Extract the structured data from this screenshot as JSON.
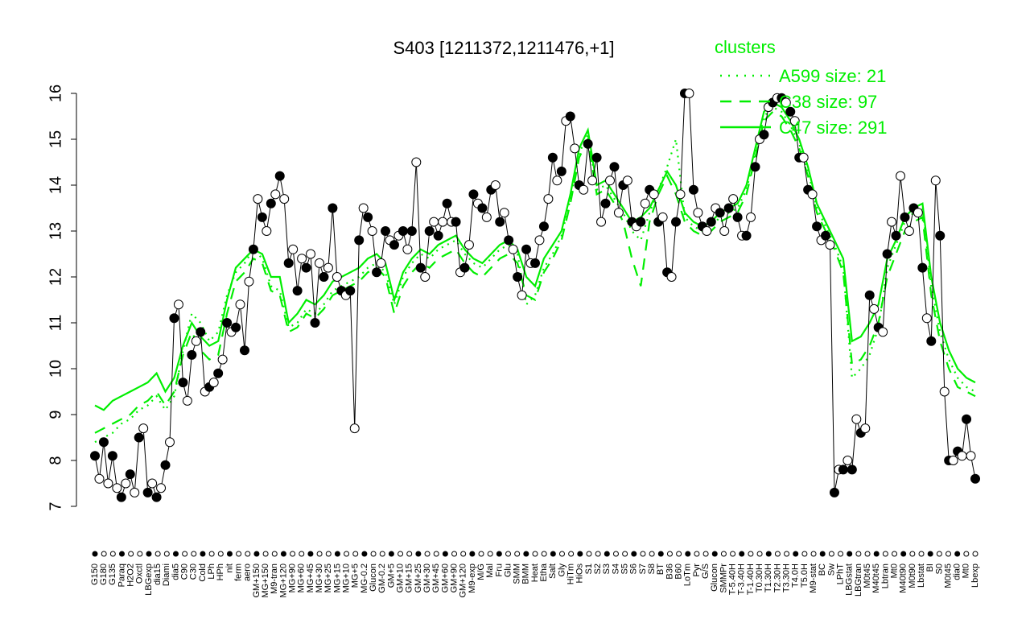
{
  "chart_data": {
    "type": "line",
    "title": "S403 [1211372,1211476,+1]",
    "ylim": [
      7,
      16
    ],
    "yticks": [
      7,
      8,
      9,
      10,
      11,
      12,
      13,
      14,
      15,
      16
    ],
    "xlabels": [
      "G150",
      "G180",
      "G135",
      "Paraq",
      "H2O2",
      "Oxctl",
      "LBGexp",
      "dia15",
      "Diami",
      "dia5",
      "C90",
      "C30",
      "Cold",
      "LPh",
      "HPh",
      "nit",
      "ferm",
      "aero",
      "GM+150",
      "MG+150",
      "M9-tran",
      "MG+120",
      "MG+90",
      "MG+60",
      "MG+45",
      "MG+30",
      "MG+25",
      "MG+15",
      "MG+10",
      "MG+5",
      "MG-0.2",
      "Glucon",
      "GM-0.2",
      "GM+5",
      "GM+10",
      "GM+15",
      "GM+25",
      "GM+30",
      "GM+45",
      "GM+60",
      "GM+90",
      "GM+120",
      "M9-exp",
      "M/G",
      "Mal",
      "Fru",
      "Glu",
      "SMM",
      "BMM",
      "Heat",
      "Etha",
      "Salt",
      "Gly",
      "HiTm",
      "HiOs",
      "S1",
      "S2",
      "S3",
      "S4",
      "S5",
      "S6",
      "S7",
      "S8",
      "BT",
      "B36",
      "B60",
      "LoTm",
      "Pyr",
      "G/S",
      "Glucon",
      "SMMPr",
      "T-5.40H",
      "T-3.40H",
      "T-1.40H",
      "T0.30H",
      "T1.30H",
      "T2.30H",
      "T3.30H",
      "T4.0H",
      "T5.0H",
      "M9-stat",
      "BC",
      "Sw",
      "LPhT",
      "LBGstat",
      "LBGtran",
      "M0t45",
      "M40t45",
      "Lbtran",
      "Mt0",
      "M40t90",
      "M0t90",
      "Lbstat",
      "BI",
      "S0",
      "M0t45",
      "dia0",
      "Mt0",
      "Lbexp"
    ],
    "legend": {
      "title": "clusters",
      "entries": [
        "A599 size: 21",
        "C38 size: 97",
        "C47 size: 291"
      ],
      "placement": "top-right",
      "line_styles": [
        "dotted",
        "dashed",
        "solid"
      ]
    },
    "series": [
      {
        "name": "C47 size: 291",
        "style": "solid",
        "values": [
          9.2,
          9.1,
          9.3,
          9.4,
          9.5,
          9.6,
          9.7,
          9.9,
          9.5,
          9.8,
          10.5,
          11.0,
          10.7,
          10.5,
          10.6,
          11.5,
          12.2,
          12.4,
          12.6,
          12.5,
          12.0,
          12.0,
          11.0,
          11.2,
          11.5,
          11.4,
          11.6,
          11.9,
          12.0,
          12.1,
          12.2,
          12.4,
          12.5,
          12.3,
          11.5,
          12.1,
          12.4,
          12.6,
          12.5,
          12.7,
          12.8,
          12.9,
          12.6,
          12.4,
          12.3,
          12.5,
          12.7,
          12.8,
          12.6,
          12.0,
          11.8,
          12.4,
          12.7,
          13.0,
          13.8,
          14.8,
          15.2,
          14.0,
          14.1,
          13.8,
          13.5,
          13.2,
          13.3,
          13.5,
          13.9,
          14.3,
          14.0,
          13.4,
          13.2,
          13.1,
          13.2,
          13.4,
          13.5,
          13.6,
          14.0,
          14.8,
          15.6,
          15.8,
          15.7,
          15.4,
          15.0,
          14.4,
          13.6,
          13.2,
          12.8,
          12.4,
          10.6,
          10.7,
          11.0,
          11.4,
          12.4,
          12.8,
          13.3,
          13.5,
          13.6,
          12.0,
          11.0,
          10.4,
          10.0,
          9.8,
          9.7
        ]
      },
      {
        "name": "C38 size: 97",
        "style": "dashed",
        "values": [
          8.6,
          8.7,
          8.8,
          8.9,
          9.0,
          9.2,
          9.3,
          9.5,
          9.2,
          9.5,
          10.3,
          10.8,
          10.4,
          10.2,
          10.3,
          11.2,
          11.9,
          12.1,
          12.4,
          12.3,
          11.7,
          11.6,
          10.8,
          10.9,
          11.2,
          11.1,
          11.3,
          11.6,
          11.7,
          11.8,
          11.9,
          12.1,
          12.2,
          12.0,
          11.2,
          11.8,
          12.1,
          12.3,
          12.2,
          12.4,
          12.5,
          12.6,
          12.3,
          12.1,
          12.0,
          12.2,
          12.4,
          12.5,
          12.3,
          11.6,
          11.5,
          12.1,
          12.4,
          12.8,
          13.6,
          14.6,
          15.0,
          13.8,
          13.9,
          13.6,
          13.2,
          12.4,
          11.8,
          13.2,
          13.8,
          14.2,
          13.8,
          13.2,
          13.0,
          12.9,
          13.0,
          13.2,
          13.3,
          13.4,
          13.8,
          14.6,
          15.4,
          15.6,
          15.5,
          15.2,
          14.8,
          14.2,
          13.4,
          13.0,
          12.6,
          12.1,
          10.1,
          10.2,
          10.5,
          11.0,
          12.0,
          12.5,
          13.0,
          13.2,
          13.3,
          11.6,
          10.6,
          10.0,
          9.6,
          9.5,
          9.4
        ]
      },
      {
        "name": "A599 size: 21",
        "style": "dotted",
        "values": [
          8.4,
          8.5,
          8.6,
          8.8,
          8.9,
          9.1,
          9.2,
          9.4,
          9.1,
          9.4,
          10.4,
          11.2,
          11.0,
          10.6,
          10.8,
          11.6,
          12.1,
          12.3,
          12.6,
          12.4,
          11.8,
          11.7,
          10.9,
          11.0,
          11.3,
          11.2,
          11.4,
          11.7,
          11.8,
          11.9,
          12.0,
          12.2,
          12.3,
          12.1,
          11.4,
          12.0,
          12.3,
          12.5,
          12.4,
          12.6,
          12.7,
          12.8,
          12.5,
          12.3,
          12.2,
          12.4,
          12.6,
          12.7,
          12.5,
          11.4,
          11.6,
          12.2,
          12.5,
          12.9,
          13.7,
          14.7,
          15.1,
          13.9,
          14.0,
          13.7,
          13.4,
          13.0,
          12.8,
          13.4,
          13.9,
          14.4,
          15.0,
          13.3,
          13.1,
          13.0,
          13.1,
          13.3,
          13.4,
          13.5,
          13.9,
          14.7,
          15.5,
          15.7,
          15.6,
          15.3,
          14.9,
          14.3,
          13.5,
          13.1,
          12.7,
          12.2,
          9.8,
          10.0,
          10.3,
          10.9,
          12.2,
          12.7,
          13.2,
          13.4,
          13.5,
          11.8,
          10.8,
          10.2,
          9.8,
          9.6,
          9.5
        ]
      },
      {
        "name": "",
        "style": "points",
        "values": [
          8.1,
          7.6,
          8.4,
          7.5,
          8.1,
          7.4,
          7.2,
          7.5,
          7.7,
          7.3,
          8.5,
          8.7,
          7.3,
          7.5,
          7.2,
          7.4,
          7.9,
          8.4,
          11.1,
          11.4,
          9.7,
          9.3,
          10.3,
          10.6,
          10.8,
          9.5,
          9.6,
          9.7,
          9.9,
          10.2,
          11.0,
          10.8,
          10.9,
          11.4,
          10.4,
          11.9,
          12.6,
          13.7,
          13.3,
          13.0,
          13.6,
          13.8,
          14.2,
          13.7,
          12.3,
          12.6,
          11.7,
          12.4,
          12.2,
          12.5,
          11.0,
          12.3,
          12.0,
          12.2,
          13.5,
          12.0,
          11.7,
          11.6,
          11.7,
          8.7,
          12.8,
          13.5,
          13.3,
          13.0,
          12.1,
          12.3,
          13.0,
          12.8,
          12.7,
          12.9,
          13.0,
          12.6,
          13.0,
          14.5,
          12.2,
          12.0,
          13.0,
          13.2,
          12.9,
          13.2,
          13.6,
          13.2,
          13.2,
          12.1,
          12.2,
          12.7,
          13.8,
          13.6,
          13.5,
          13.3,
          13.9,
          14.0,
          13.2,
          13.4,
          12.8,
          12.6,
          12.0,
          11.6,
          12.6,
          12.3,
          12.3,
          12.8,
          13.1,
          13.7,
          14.6,
          14.1,
          14.3,
          15.4,
          15.5,
          14.8,
          14.0,
          13.9,
          14.9,
          14.1,
          14.6,
          13.2,
          13.6,
          14.1,
          14.4,
          13.4,
          14.0,
          14.1,
          13.2,
          13.1,
          13.2,
          13.6,
          13.9,
          13.8,
          13.2,
          13.3,
          12.1,
          12.0,
          13.2,
          13.8,
          16.0,
          16.0,
          13.9,
          13.4,
          13.1,
          13.0,
          13.2,
          13.5,
          13.4,
          13.0,
          13.5,
          13.7,
          13.3,
          12.9,
          12.9,
          13.3,
          14.4,
          15.0,
          15.1,
          15.7,
          15.8,
          15.9,
          15.9,
          15.8,
          15.6,
          15.4,
          14.6,
          14.6,
          13.9,
          13.8,
          13.1,
          12.8,
          12.9,
          12.7,
          7.3,
          7.8,
          7.8,
          8.0,
          7.8,
          8.9,
          8.6,
          8.7,
          11.6,
          11.3,
          10.9,
          10.8,
          12.5,
          13.2,
          12.9,
          14.2,
          13.3,
          13.0,
          13.5,
          13.4,
          12.2,
          11.1,
          10.6,
          14.1,
          12.9,
          9.5,
          8.0,
          8.0,
          8.2,
          8.1,
          8.9,
          8.1,
          7.6
        ]
      }
    ]
  }
}
